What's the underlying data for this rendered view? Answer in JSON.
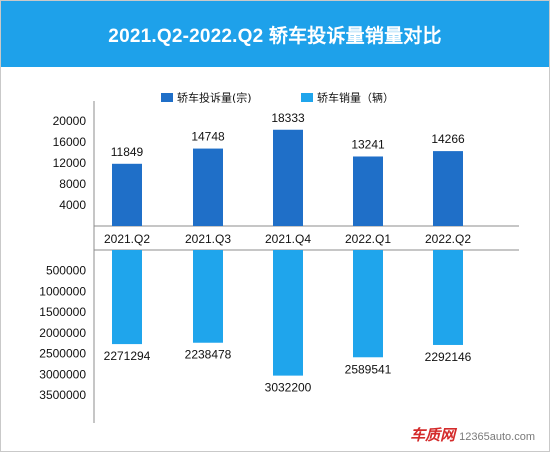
{
  "banner": {
    "title": "2021.Q2-2022.Q2 轿车投诉量销量对比"
  },
  "watermark": {
    "brand": "车质网",
    "url": "12365auto.com"
  },
  "colors": {
    "banner": "#1ea1ea",
    "complaints": "#1f6fc8",
    "sales": "#1fa5ec"
  },
  "chart_data": {
    "type": "bar",
    "categories": [
      "2021.Q2",
      "2021.Q3",
      "2021.Q4",
      "2022.Q1",
      "2022.Q2"
    ],
    "legend_position": "top",
    "series": [
      {
        "name": "轿车投诉量(宗)",
        "values": [
          11849,
          14748,
          18333,
          13241,
          14266
        ],
        "color": "#1f6fc8",
        "direction": "up",
        "axis": {
          "min": 0,
          "max": 20000,
          "ticks": [
            4000,
            8000,
            12000,
            16000,
            20000
          ],
          "tick_labels": [
            "4000",
            "8000",
            "12000",
            "16000",
            "20000"
          ]
        }
      },
      {
        "name": "轿车销量（辆）",
        "values": [
          2271294,
          2238478,
          3032200,
          2589541,
          2292146
        ],
        "color": "#1fa5ec",
        "direction": "down",
        "axis": {
          "min": 0,
          "max": 3500000,
          "ticks": [
            500000,
            1000000,
            1500000,
            2000000,
            2500000,
            3000000,
            3500000
          ],
          "tick_labels": [
            "500000",
            "1000000",
            "1500000",
            "2000000",
            "2500000",
            "3000000",
            "3500000"
          ]
        }
      }
    ],
    "grid": false
  }
}
